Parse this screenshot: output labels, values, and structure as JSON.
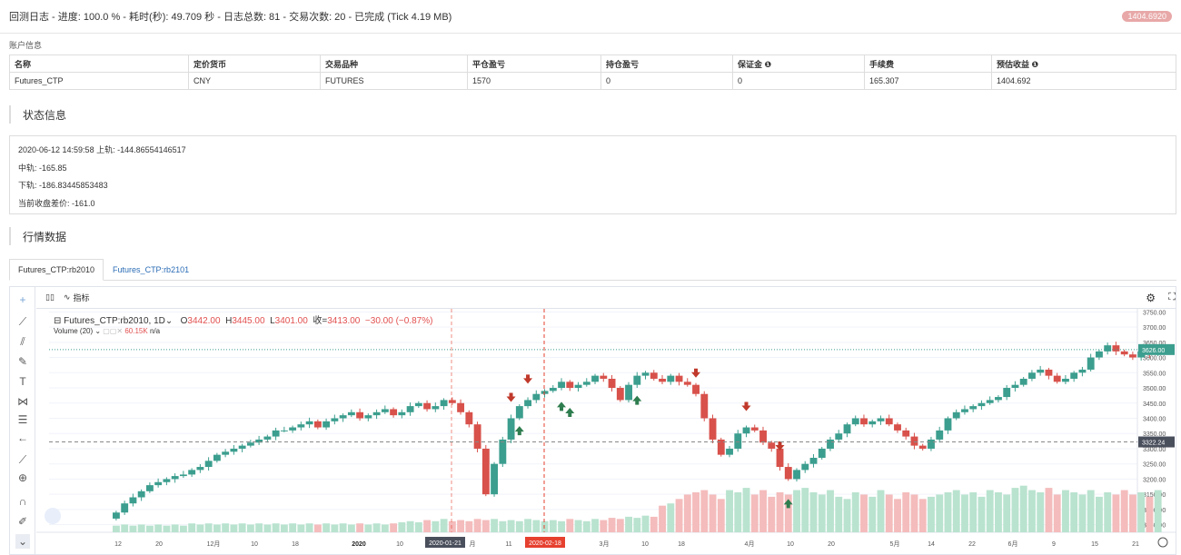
{
  "topbar": {
    "title": "回测日志 - 进度: 100.0 % - 耗时(秒): 49.709 秒 - 日志总数: 81 - 交易次数: 20 - 已完成 (Tick 4.19 MB)",
    "badge": "1404.6920"
  },
  "account": {
    "label": "账户信息",
    "headers": [
      "名称",
      "定价货币",
      "交易品种",
      "平仓盈亏",
      "持仓盈亏",
      "保证金 ❶",
      "手续费",
      "预估收益 ❶"
    ],
    "row": [
      "Futures_CTP",
      "CNY",
      "FUTURES",
      "1570",
      "0",
      "0",
      "165.307",
      "1404.692"
    ]
  },
  "status": {
    "title": "状态信息",
    "lines": [
      "2020-06-12 14:59:58 上轨:  -144.86554146517",
      "中轨:  -165.85",
      "下轨:  -186.83445853483",
      "当前收盘差价:  -161.0"
    ]
  },
  "market": {
    "title": "行情数据",
    "tabs": [
      "Futures_CTP:rb2010",
      "Futures_CTP:rb2101"
    ]
  },
  "chart_toolbar": {
    "indicator_label": "指标"
  },
  "legend": {
    "symbol": "Futures_CTP:rb2010, 1D",
    "o_label": "O",
    "o": "3442.00",
    "h_label": "H",
    "h": "3445.00",
    "l_label": "L",
    "l": "3401.00",
    "c_label": "收=",
    "c": "3413.00",
    "change": "−30.00 (−0.87%)",
    "volume_label": "Volume (20)",
    "volume_value": "60.15K",
    "volume_na": "n/a"
  },
  "chart_data": {
    "type": "candlestick",
    "symbol": "Futures_CTP:rb2010",
    "interval": "1D",
    "y_ticks": [
      3050,
      3100,
      3150,
      3200,
      3250,
      3300,
      3350,
      3400,
      3450,
      3500,
      3550,
      3600,
      3650,
      3700,
      3750
    ],
    "ylim": [
      3025,
      3760
    ],
    "y_tick_labels": [
      "3050.00",
      "3100.00",
      "3150.00",
      "3200.00",
      "3250.00",
      "3300.00",
      "3350.00",
      "3400.00",
      "3450.00",
      "3500.00",
      "3550.00",
      "3600.00",
      "3650.00",
      "3700.00",
      "3750.00"
    ],
    "x_tick_labels": [
      "12",
      "20",
      "12月",
      "10",
      "18",
      "2020",
      "10",
      "2020-01-21",
      "月",
      "11",
      "2020-02-18",
      "3月",
      "10",
      "18",
      "4月",
      "10",
      "20",
      "5月",
      "14",
      "22",
      "6月",
      "9",
      "15",
      "21"
    ],
    "price_labels": {
      "current": "3626.00",
      "crosshair": "3322.24"
    },
    "date_labels": [
      "2020-01-21",
      "2020-02-18"
    ],
    "closes": [
      3090,
      3120,
      3140,
      3160,
      3180,
      3190,
      3200,
      3210,
      3215,
      3230,
      3240,
      3260,
      3280,
      3290,
      3300,
      3310,
      3320,
      3330,
      3340,
      3360,
      3360,
      3370,
      3380,
      3390,
      3370,
      3390,
      3400,
      3410,
      3420,
      3400,
      3410,
      3420,
      3430,
      3410,
      3420,
      3440,
      3450,
      3430,
      3440,
      3460,
      3450,
      3420,
      3380,
      3300,
      3150,
      3250,
      3330,
      3400,
      3440,
      3460,
      3480,
      3490,
      3500,
      3520,
      3500,
      3510,
      3520,
      3540,
      3530,
      3500,
      3460,
      3510,
      3540,
      3550,
      3530,
      3520,
      3540,
      3520,
      3510,
      3480,
      3400,
      3330,
      3280,
      3300,
      3350,
      3370,
      3360,
      3320,
      3300,
      3240,
      3200,
      3230,
      3250,
      3270,
      3300,
      3330,
      3350,
      3380,
      3400,
      3380,
      3390,
      3400,
      3380,
      3360,
      3340,
      3310,
      3300,
      3330,
      3360,
      3400,
      3420,
      3430,
      3440,
      3450,
      3460,
      3470,
      3500,
      3510,
      3530,
      3550,
      3560,
      3540,
      3520,
      3530,
      3550,
      3560,
      3600,
      3620,
      3640,
      3620,
      3610,
      3600,
      3620,
      3610,
      3626
    ],
    "volumes": [
      6,
      7,
      6,
      7,
      6,
      7,
      6,
      7,
      6,
      8,
      7,
      8,
      7,
      8,
      7,
      8,
      7,
      8,
      7,
      8,
      7,
      8,
      7,
      8,
      7,
      8,
      7,
      8,
      7,
      8,
      7,
      8,
      7,
      8,
      9,
      10,
      9,
      11,
      10,
      12,
      10,
      11,
      10,
      12,
      11,
      12,
      10,
      11,
      10,
      12,
      11,
      10,
      11,
      10,
      12,
      11,
      10,
      12,
      11,
      13,
      12,
      14,
      13,
      15,
      14,
      24,
      26,
      30,
      34,
      36,
      38,
      34,
      30,
      38,
      36,
      40,
      34,
      38,
      32,
      36,
      34,
      38,
      40,
      36,
      34,
      38,
      32,
      30,
      36,
      34,
      32,
      38,
      34,
      30,
      36,
      34,
      30,
      32,
      34,
      36,
      38,
      34,
      36,
      32,
      38,
      36,
      34,
      40,
      42,
      38,
      36,
      40,
      34,
      38,
      36,
      34,
      38,
      32,
      36,
      34,
      38,
      34,
      36,
      32,
      38
    ],
    "buy_markers": [
      48,
      53,
      54,
      62,
      80
    ],
    "sell_markers": [
      47,
      49,
      69,
      75,
      79
    ]
  }
}
